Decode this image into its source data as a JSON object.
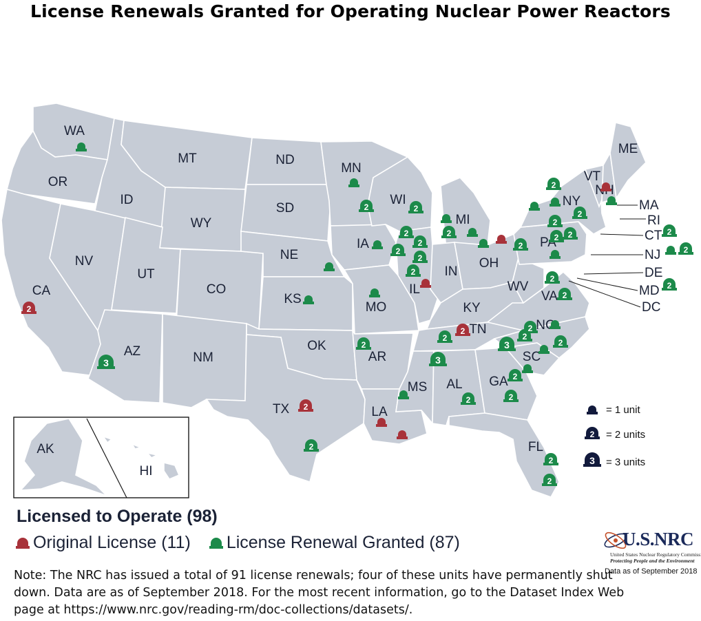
{
  "title": "License Renewals Granted for Operating Nuclear Power Reactors",
  "colors": {
    "original_license": "#a8323a",
    "renewal_granted": "#1c8a4a",
    "legend_unit": "#121a3c",
    "state_fill": "#c6ccd6"
  },
  "states": [
    {
      "abbr": "WA"
    },
    {
      "abbr": "OR"
    },
    {
      "abbr": "CA"
    },
    {
      "abbr": "NV"
    },
    {
      "abbr": "ID"
    },
    {
      "abbr": "MT"
    },
    {
      "abbr": "WY"
    },
    {
      "abbr": "UT"
    },
    {
      "abbr": "CO"
    },
    {
      "abbr": "AZ"
    },
    {
      "abbr": "NM"
    },
    {
      "abbr": "ND"
    },
    {
      "abbr": "SD"
    },
    {
      "abbr": "NE"
    },
    {
      "abbr": "KS"
    },
    {
      "abbr": "OK"
    },
    {
      "abbr": "TX"
    },
    {
      "abbr": "MN"
    },
    {
      "abbr": "IA"
    },
    {
      "abbr": "MO"
    },
    {
      "abbr": "AR"
    },
    {
      "abbr": "LA"
    },
    {
      "abbr": "WI"
    },
    {
      "abbr": "IL"
    },
    {
      "abbr": "MI"
    },
    {
      "abbr": "IN"
    },
    {
      "abbr": "OH"
    },
    {
      "abbr": "KY"
    },
    {
      "abbr": "TN"
    },
    {
      "abbr": "MS"
    },
    {
      "abbr": "AL"
    },
    {
      "abbr": "GA"
    },
    {
      "abbr": "FL"
    },
    {
      "abbr": "SC"
    },
    {
      "abbr": "NC"
    },
    {
      "abbr": "VA"
    },
    {
      "abbr": "WV"
    },
    {
      "abbr": "PA"
    },
    {
      "abbr": "NY"
    },
    {
      "abbr": "VT"
    },
    {
      "abbr": "NH"
    },
    {
      "abbr": "ME"
    },
    {
      "abbr": "AK"
    },
    {
      "abbr": "HI"
    }
  ],
  "callout_states": [
    "MA",
    "RI",
    "CT",
    "NJ",
    "DE",
    "MD",
    "DC"
  ],
  "reactors": [
    {
      "state": "WA",
      "type": "renewal",
      "units": 1
    },
    {
      "state": "CA",
      "type": "original",
      "units": 2
    },
    {
      "state": "AZ",
      "type": "renewal",
      "units": 3
    },
    {
      "state": "TX",
      "type": "original",
      "units": 2
    },
    {
      "state": "TX",
      "type": "renewal",
      "units": 2
    },
    {
      "state": "KS",
      "type": "renewal",
      "units": 1
    },
    {
      "state": "NE",
      "type": "renewal",
      "units": 1
    },
    {
      "state": "MN",
      "type": "renewal",
      "units": 1
    },
    {
      "state": "MN",
      "type": "renewal",
      "units": 2
    },
    {
      "state": "IA",
      "type": "renewal",
      "units": 1
    },
    {
      "state": "MO",
      "type": "renewal",
      "units": 1
    },
    {
      "state": "AR",
      "type": "renewal",
      "units": 2
    },
    {
      "state": "LA",
      "type": "original",
      "units": 1
    },
    {
      "state": "LA",
      "type": "original",
      "units": 1
    },
    {
      "state": "MS",
      "type": "renewal",
      "units": 1
    },
    {
      "state": "WI",
      "type": "renewal",
      "units": 2
    },
    {
      "state": "IL",
      "type": "renewal",
      "units": 2
    },
    {
      "state": "IL",
      "type": "renewal",
      "units": 2
    },
    {
      "state": "IL",
      "type": "renewal",
      "units": 2
    },
    {
      "state": "IL",
      "type": "renewal",
      "units": 2
    },
    {
      "state": "IL",
      "type": "renewal",
      "units": 2
    },
    {
      "state": "IL",
      "type": "original",
      "units": 1
    },
    {
      "state": "MI",
      "type": "renewal",
      "units": 1
    },
    {
      "state": "MI",
      "type": "renewal",
      "units": 2
    },
    {
      "state": "MI",
      "type": "renewal",
      "units": 1
    },
    {
      "state": "OH",
      "type": "renewal",
      "units": 1
    },
    {
      "state": "OH",
      "type": "original",
      "units": 1
    },
    {
      "state": "TN",
      "type": "original",
      "units": 2
    },
    {
      "state": "TN",
      "type": "renewal",
      "units": 2
    },
    {
      "state": "AL",
      "type": "renewal",
      "units": 3
    },
    {
      "state": "AL",
      "type": "renewal",
      "units": 2
    },
    {
      "state": "GA",
      "type": "renewal",
      "units": 2
    },
    {
      "state": "GA",
      "type": "renewal",
      "units": 2
    },
    {
      "state": "FL",
      "type": "renewal",
      "units": 2
    },
    {
      "state": "FL",
      "type": "renewal",
      "units": 2
    },
    {
      "state": "SC",
      "type": "renewal",
      "units": 3
    },
    {
      "state": "SC",
      "type": "renewal",
      "units": 2
    },
    {
      "state": "SC",
      "type": "renewal",
      "units": 1
    },
    {
      "state": "SC",
      "type": "renewal",
      "units": 1
    },
    {
      "state": "NC",
      "type": "renewal",
      "units": 2
    },
    {
      "state": "NC",
      "type": "renewal",
      "units": 1
    },
    {
      "state": "NC",
      "type": "renewal",
      "units": 2
    },
    {
      "state": "VA",
      "type": "renewal",
      "units": 2
    },
    {
      "state": "VA",
      "type": "renewal",
      "units": 2
    },
    {
      "state": "PA",
      "type": "renewal",
      "units": 2
    },
    {
      "state": "PA",
      "type": "renewal",
      "units": 2
    },
    {
      "state": "PA",
      "type": "renewal",
      "units": 2
    },
    {
      "state": "PA",
      "type": "renewal",
      "units": 1
    },
    {
      "state": "PA",
      "type": "renewal",
      "units": 2
    },
    {
      "state": "NY",
      "type": "renewal",
      "units": 2
    },
    {
      "state": "NY",
      "type": "renewal",
      "units": 1
    },
    {
      "state": "NY",
      "type": "renewal",
      "units": 1
    },
    {
      "state": "NY",
      "type": "renewal",
      "units": 2
    },
    {
      "state": "NH",
      "type": "original",
      "units": 1
    },
    {
      "state": "MA",
      "type": "renewal",
      "units": 1
    },
    {
      "state": "CT",
      "type": "renewal",
      "units": 2
    },
    {
      "state": "NJ",
      "type": "renewal",
      "units": 1
    },
    {
      "state": "NJ",
      "type": "renewal",
      "units": 2
    },
    {
      "state": "MD",
      "type": "renewal",
      "units": 2
    }
  ],
  "unit_legend": [
    {
      "units": 1,
      "label": "= 1 unit"
    },
    {
      "units": 2,
      "label": "= 2 units"
    },
    {
      "units": 3,
      "label": "= 3 units"
    }
  ],
  "licensed_to_operate": "Licensed to Operate (98)",
  "original_license_label": "Original License (11)",
  "renewal_granted_label": "License Renewal Granted (87)",
  "note": "Note: The NRC has issued a total of 91 license renewals; four of these units have permanently shut down. Data are as of September 2018. For the most recent information, go to the Dataset Index Web page at https://www.nrc.gov/reading-rm/doc-collections/datasets/.",
  "logo": {
    "wordmark": "U.S.NRC",
    "sub1": "United States Nuclear Regulatory Commission",
    "sub2": "Protecting People and the Environment"
  },
  "data_as_of": "Data as of September 2018"
}
